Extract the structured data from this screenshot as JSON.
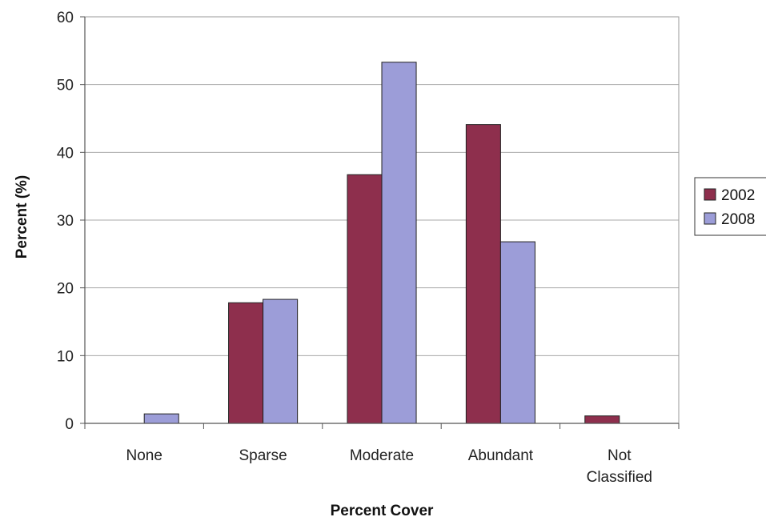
{
  "chart_data": {
    "type": "bar",
    "title": "",
    "xlabel": "Percent Cover",
    "ylabel": "Percent (%)",
    "categories": [
      "None",
      "Sparse",
      "Moderate",
      "Abundant",
      "Not Classified"
    ],
    "category_lines": [
      [
        "None"
      ],
      [
        "Sparse"
      ],
      [
        "Moderate"
      ],
      [
        "Abundant"
      ],
      [
        "Not",
        "Classified"
      ]
    ],
    "series": [
      {
        "name": "2002",
        "color": "#8e2f4d",
        "values": [
          0,
          17.8,
          36.7,
          44.1,
          1.1
        ]
      },
      {
        "name": "2008",
        "color": "#9c9dd8",
        "values": [
          1.4,
          18.3,
          53.3,
          26.8,
          0
        ]
      }
    ],
    "ylim": [
      0,
      60
    ],
    "yticks": [
      0,
      10,
      20,
      30,
      40,
      50,
      60
    ],
    "grid": true,
    "legend_position": "right"
  }
}
